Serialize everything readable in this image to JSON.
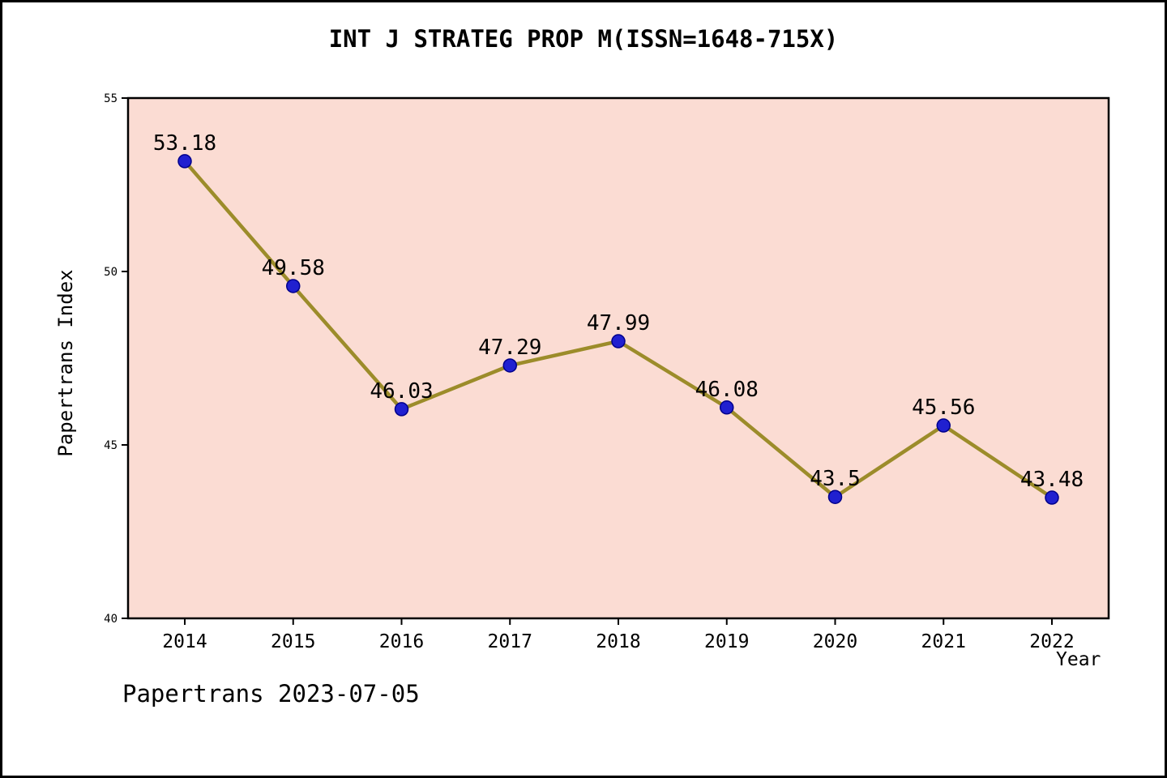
{
  "chart_data": {
    "type": "line",
    "title": "INT J STRATEG PROP M(ISSN=1648-715X)",
    "x": [
      "2014",
      "2015",
      "2016",
      "2017",
      "2018",
      "2019",
      "2020",
      "2021",
      "2022"
    ],
    "series": [
      {
        "name": "Papertrans Index",
        "values": [
          53.18,
          49.58,
          46.03,
          47.29,
          47.99,
          46.08,
          43.5,
          45.56,
          43.48
        ],
        "labels": [
          "53.18",
          "49.58",
          "46.03",
          "47.29",
          "47.99",
          "46.08",
          "43.5",
          "45.56",
          "43.48"
        ]
      }
    ],
    "xlabel": "Year",
    "ylabel": "Papertrans Index",
    "ylim": [
      40,
      55
    ],
    "yticks": [
      40,
      45,
      50,
      55
    ],
    "grid": false,
    "legend_position": "none",
    "colors": {
      "plot_bg": "#fbdcd3",
      "line": "#9c8c2a",
      "marker": "#2020d0",
      "marker_edge": "#00008b",
      "axis": "#000000",
      "page_bg": "#ffffff",
      "border": "#000000"
    }
  },
  "footer": {
    "text": "Papertrans 2023-07-05"
  }
}
